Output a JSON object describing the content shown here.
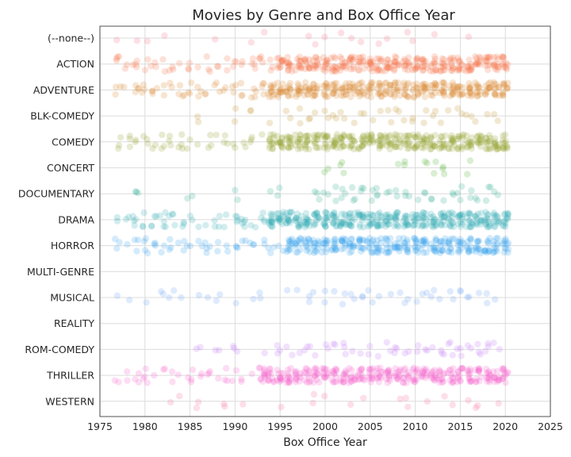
{
  "chart_data": {
    "type": "scatter",
    "title": "Movies by Genre and Box Office Year",
    "xlabel": "Box Office Year",
    "ylabel": "",
    "xlim": [
      1975,
      2025
    ],
    "xticks": [
      1975,
      1980,
      1985,
      1990,
      1995,
      2000,
      2005,
      2010,
      2015,
      2020,
      2025
    ],
    "grid": true,
    "categories": [
      "(--none--)",
      "ACTION",
      "ADVENTURE",
      "BLK-COMEDY",
      "COMEDY",
      "CONCERT",
      "DOCUMENTARY",
      "DRAMA",
      "HORROR",
      "MULTI-GENRE",
      "MUSICAL",
      "REALITY",
      "ROM-COMEDY",
      "THRILLER",
      "WESTERN"
    ],
    "colors": [
      "#f77189",
      "#f7754f",
      "#dc8932",
      "#c39532",
      "#97a431",
      "#50b131",
      "#34ae91",
      "#37abb5",
      "#3ba3ec",
      "#bb83f4",
      "#6ea5f5",
      "#8d8df5",
      "#c579f4",
      "#f565cc",
      "#f56c9b"
    ],
    "series": [
      {
        "category": "(--none--)",
        "density": 0.12,
        "x": [
          1977,
          1979,
          1980,
          1982,
          1988,
          1992,
          1993,
          1998,
          1999,
          2000,
          2002,
          2003,
          2004,
          2006,
          2007,
          2009,
          2010,
          2012,
          2016
        ]
      },
      {
        "category": "ACTION",
        "density": 0.75,
        "x_range": [
          1977,
          2020
        ],
        "dense_from": 1995
      },
      {
        "category": "ADVENTURE",
        "density": 0.8,
        "x_range": [
          1977,
          2020
        ],
        "dense_from": 1994
      },
      {
        "category": "BLK-COMEDY",
        "density": 0.35,
        "x": [
          1986,
          1990,
          1992,
          1994,
          1996,
          1997,
          1998,
          1999,
          2000,
          2001,
          2002,
          2003,
          2004,
          2005,
          2006,
          2007,
          2008,
          2009,
          2010,
          2011,
          2012,
          2013,
          2014,
          2015,
          2016,
          2017,
          2018,
          2019
        ]
      },
      {
        "category": "COMEDY",
        "density": 0.85,
        "x_range": [
          1977,
          2020
        ],
        "dense_from": 1994
      },
      {
        "category": "CONCERT",
        "density": 0.5,
        "x": [
          2000,
          2002,
          2008,
          2009,
          2011,
          2012,
          2013,
          2016
        ]
      },
      {
        "category": "DOCUMENTARY",
        "density": 0.5,
        "x": [
          1979,
          1985,
          1990,
          1994,
          1995,
          1999,
          2000,
          2001,
          2002,
          2003,
          2004,
          2005,
          2006,
          2007,
          2008,
          2009,
          2010,
          2011,
          2012,
          2013,
          2014,
          2015,
          2016,
          2017,
          2018,
          2019
        ]
      },
      {
        "category": "DRAMA",
        "density": 1.0,
        "x_range": [
          1977,
          2020
        ],
        "dense_from": 1994
      },
      {
        "category": "HORROR",
        "density": 0.7,
        "x_range": [
          1977,
          2020
        ],
        "dense_from": 1996
      },
      {
        "category": "MULTI-GENRE",
        "density": 0,
        "x": []
      },
      {
        "category": "MUSICAL",
        "density": 0.35,
        "x": [
          1977,
          1978,
          1980,
          1982,
          1983,
          1984,
          1986,
          1987,
          1988,
          1990,
          1992,
          1993,
          1996,
          1997,
          1998,
          1999,
          2000,
          2001,
          2002,
          2003,
          2004,
          2005,
          2006,
          2007,
          2008,
          2009,
          2010,
          2011,
          2012,
          2013,
          2014,
          2015,
          2016,
          2017,
          2018,
          2019
        ]
      },
      {
        "category": "REALITY",
        "density": 0,
        "x": []
      },
      {
        "category": "ROM-COMEDY",
        "density": 0.6,
        "x": [
          1986,
          1988,
          1990,
          1993,
          1995,
          1996,
          1997,
          1998,
          1999,
          2000,
          2001,
          2002,
          2003,
          2004,
          2005,
          2006,
          2007,
          2008,
          2009,
          2010,
          2011,
          2012,
          2013,
          2014,
          2015,
          2016,
          2017,
          2018,
          2019
        ]
      },
      {
        "category": "THRILLER",
        "density": 0.8,
        "x_range": [
          1977,
          2020
        ],
        "dense_from": 1993
      },
      {
        "category": "WESTERN",
        "density": 0.15,
        "x": [
          1983,
          1984,
          1986,
          1989,
          1991,
          1995,
          1999,
          2000,
          2003,
          2004,
          2008,
          2009,
          2011,
          2013,
          2014,
          2016,
          2017,
          2019
        ]
      }
    ]
  }
}
